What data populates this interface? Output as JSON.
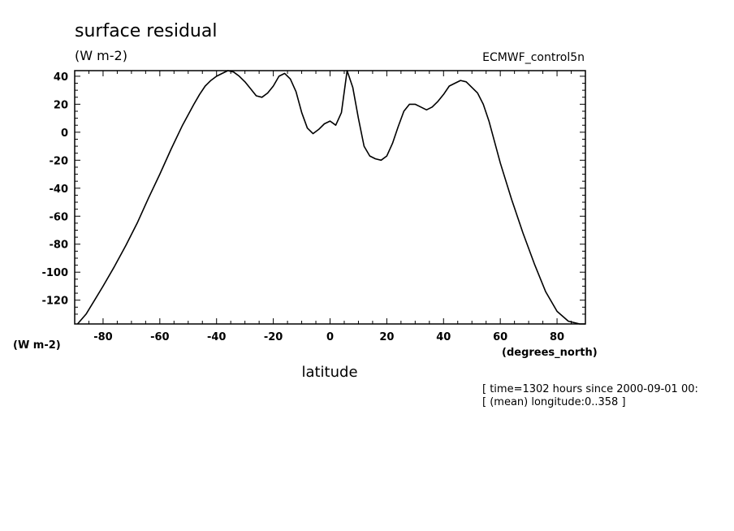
{
  "chart_data": {
    "type": "line",
    "title": "surface residual",
    "units_label": "(W m-2)",
    "dataset_label": "ECMWF_control5n",
    "xlabel": "latitude",
    "xunits": "(degrees_north)",
    "yunits_bottom": "(W m-2)",
    "xlim": [
      -90,
      90
    ],
    "ylim": [
      -137,
      44
    ],
    "xticks": [
      -80,
      -60,
      -40,
      -20,
      0,
      20,
      40,
      60,
      80
    ],
    "yticks": [
      40,
      20,
      0,
      -20,
      -40,
      -60,
      -80,
      -100,
      -120
    ],
    "grid": false,
    "series": [
      {
        "x": [
          -89,
          -86,
          -83,
          -80,
          -76,
          -72,
          -68,
          -64,
          -60,
          -56,
          -52,
          -48,
          -46,
          -44,
          -42,
          -40,
          -38,
          -36,
          -34,
          -32,
          -30,
          -28,
          -26,
          -24,
          -22,
          -20,
          -18,
          -16,
          -14,
          -12,
          -10,
          -8,
          -6,
          -4,
          -2,
          0,
          2,
          4,
          6,
          8,
          10,
          12,
          14,
          16,
          18,
          20,
          22,
          24,
          26,
          28,
          30,
          32,
          34,
          36,
          38,
          40,
          42,
          44,
          46,
          48,
          50,
          52,
          54,
          56,
          58,
          60,
          64,
          68,
          72,
          76,
          80,
          84,
          88,
          90
        ],
        "values": [
          -137,
          -130,
          -120,
          -110,
          -96,
          -81,
          -65,
          -47,
          -30,
          -12,
          5,
          20,
          27,
          33,
          37,
          40,
          42,
          44,
          43,
          40,
          36,
          31,
          26,
          25,
          28,
          33,
          40,
          42,
          38,
          29,
          14,
          3,
          -1,
          2,
          6,
          8,
          5,
          14,
          44,
          32,
          10,
          -10,
          -17,
          -19,
          -20,
          -17,
          -8,
          4,
          15,
          20,
          20,
          18,
          16,
          18,
          22,
          27,
          33,
          35,
          37,
          36,
          32,
          28,
          20,
          8,
          -7,
          -22,
          -48,
          -72,
          -94,
          -114,
          -128,
          -135,
          -137,
          -137
        ]
      }
    ]
  },
  "footer": {
    "line1": "[ time=1302 hours since 2000-09-01 00:",
    "line2": "[ (mean) longitude:0..358 ]"
  }
}
